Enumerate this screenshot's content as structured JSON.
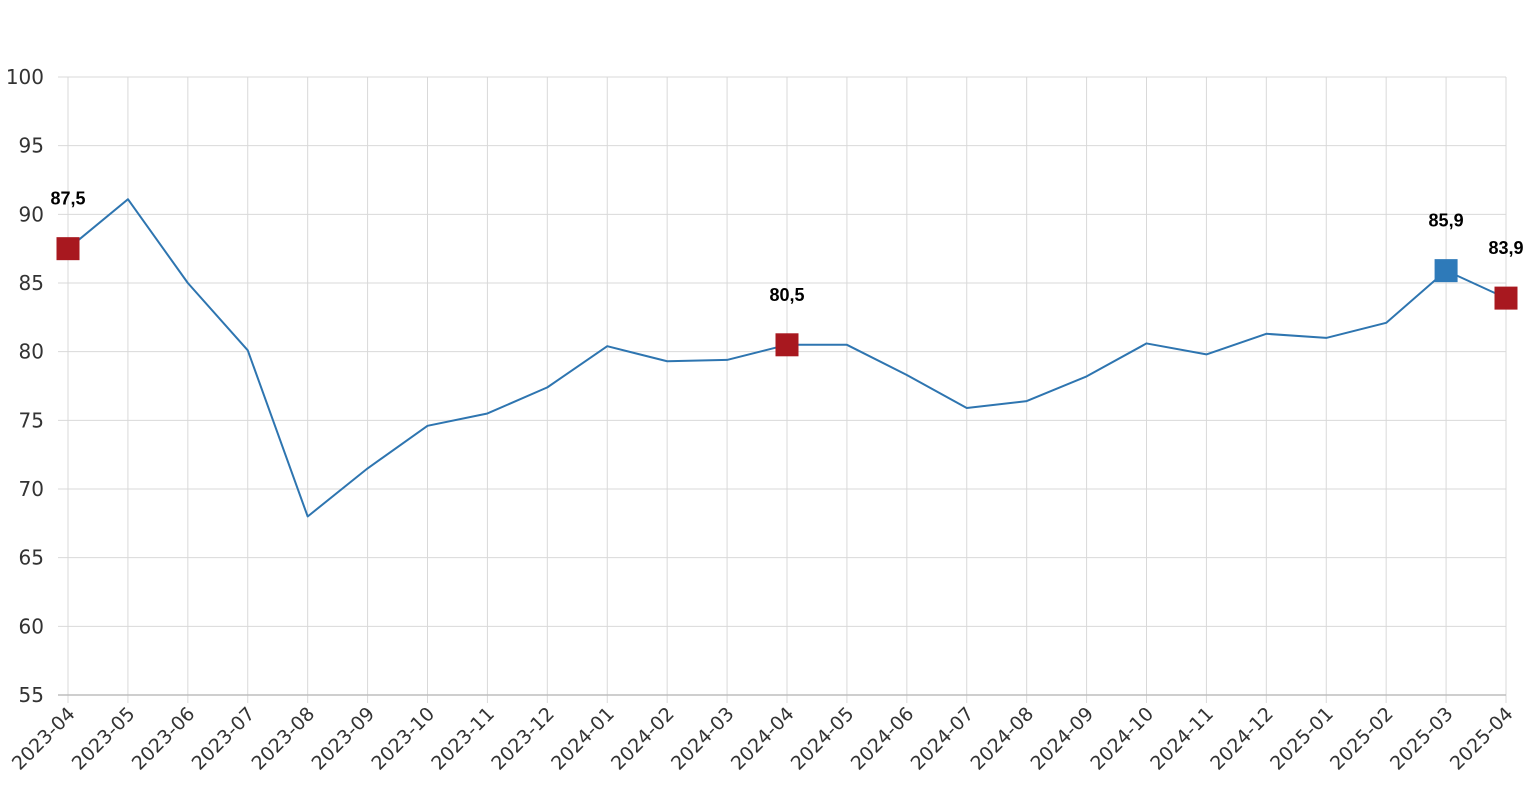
{
  "chart_data": {
    "type": "line",
    "title": "",
    "xlabel": "",
    "ylabel": "",
    "ylim": [
      55,
      100
    ],
    "yticks": [
      "55",
      "60",
      "65",
      "70",
      "75",
      "80",
      "85",
      "90",
      "95",
      "100"
    ],
    "grid": true,
    "categories": [
      "2023-04",
      "2023-05",
      "2023-06",
      "2023-07",
      "2023-08",
      "2023-09",
      "2023-10",
      "2023-11",
      "2023-12",
      "2024-01",
      "2024-02",
      "2024-03",
      "2024-04",
      "2024-05",
      "2024-06",
      "2024-07",
      "2024-08",
      "2024-09",
      "2024-10",
      "2024-11",
      "2024-12",
      "2025-01",
      "2025-02",
      "2025-03",
      "2025-04"
    ],
    "series": [
      {
        "values": [
          87.5,
          91.1,
          85.0,
          80.1,
          68.0,
          71.5,
          74.6,
          75.5,
          77.4,
          80.4,
          79.3,
          79.4,
          80.5,
          80.5,
          78.3,
          75.9,
          76.4,
          78.2,
          80.6,
          79.8,
          81.3,
          81.0,
          82.1,
          85.9,
          83.9
        ]
      }
    ],
    "highlights": [
      {
        "category": "2023-04",
        "value": 87.5,
        "label": "87,5",
        "marker": "square",
        "color": "#a8181f"
      },
      {
        "category": "2024-04",
        "value": 80.5,
        "label": "80,5",
        "marker": "square",
        "color": "#a8181f"
      },
      {
        "category": "2025-03",
        "value": 85.9,
        "label": "85,9",
        "marker": "square",
        "color": "#2e7ab9"
      },
      {
        "category": "2025-04",
        "value": 83.9,
        "label": "83,9",
        "marker": "square",
        "color": "#a8181f"
      }
    ],
    "colors": {
      "line": "#2e75b0",
      "grid": "#d9d9d9",
      "axis": "#bdbdbd",
      "text": "#333333"
    }
  }
}
